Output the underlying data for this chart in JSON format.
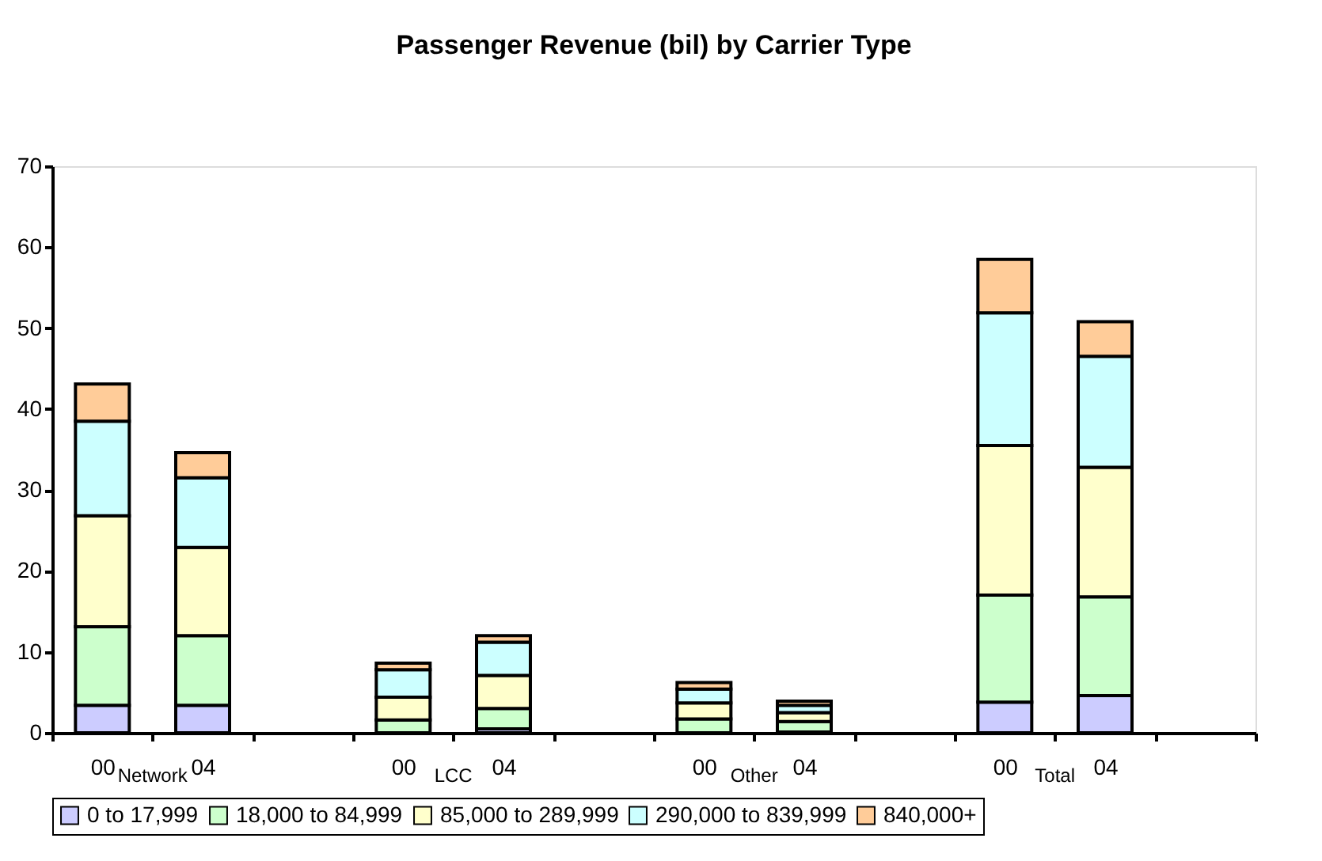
{
  "chart_data": {
    "type": "bar",
    "title": "Passenger Revenue (bil) by Carrier Type",
    "categories": [
      "00",
      "04",
      null,
      "00",
      "04",
      null,
      "00",
      "04",
      null,
      "00",
      "04",
      null
    ],
    "stacked": true,
    "series": [
      {
        "name": "0 to 17,999",
        "color": "#ccccff",
        "values": [
          3.4,
          3.4,
          null,
          null,
          0.5,
          null,
          null,
          0.1,
          null,
          3.8,
          4.6,
          null
        ]
      },
      {
        "name": "18,000 to 84,999",
        "color": "#ccffcc",
        "values": [
          9.7,
          8.6,
          null,
          1.6,
          2.5,
          null,
          1.7,
          1.3,
          null,
          13.2,
          12.2,
          null
        ]
      },
      {
        "name": "85,000 to 289,999",
        "color": "#ffffcc",
        "values": [
          13.7,
          10.9,
          null,
          2.8,
          4.1,
          null,
          2.0,
          1.1,
          null,
          18.5,
          16.0,
          null
        ]
      },
      {
        "name": "290,000 to 839,999",
        "color": "#ccffff",
        "values": [
          11.7,
          8.6,
          null,
          3.4,
          4.1,
          null,
          1.7,
          0.9,
          null,
          16.4,
          13.7,
          null
        ]
      },
      {
        "name": "840,000+",
        "color": "#ffcc99",
        "values": [
          4.6,
          3.1,
          null,
          0.8,
          0.8,
          null,
          0.8,
          0.5,
          null,
          6.6,
          4.3,
          null
        ]
      }
    ],
    "annotations": [
      "Network",
      "LCC",
      "Other",
      "Total"
    ],
    "ylim": [
      0,
      70
    ],
    "yticks": [
      0,
      10,
      20,
      30,
      40,
      50,
      60,
      70
    ],
    "grid": false,
    "legend": "bottom"
  }
}
